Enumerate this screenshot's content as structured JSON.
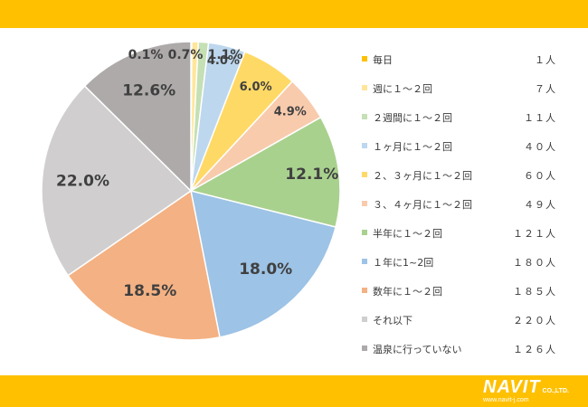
{
  "theme": {
    "band_color": "#FFC000"
  },
  "chart_data": {
    "type": "pie",
    "start_angle_deg": 0,
    "direction": "clockwise",
    "slices": [
      {
        "label": "毎日",
        "count": "１人",
        "percent": 0.1,
        "percent_label": "0.1%",
        "color": "#FFC000"
      },
      {
        "label": "週に１～２回",
        "count": "７人",
        "percent": 0.7,
        "percent_label": "0.7%",
        "color": "#FFE699"
      },
      {
        "label": "２週間に１～２回",
        "count": "１１人",
        "percent": 1.1,
        "percent_label": "1.1%",
        "color": "#C5E0B4"
      },
      {
        "label": "１ヶ月に１～２回",
        "count": "４０人",
        "percent": 4.0,
        "percent_label": "4.0%",
        "color": "#BDD7EE"
      },
      {
        "label": "２、３ヶ月に１～２回",
        "count": "６０人",
        "percent": 6.0,
        "percent_label": "6.0%",
        "color": "#FFD966"
      },
      {
        "label": "３、４ヶ月に１～２回",
        "count": "４９人",
        "percent": 4.9,
        "percent_label": "4.9%",
        "color": "#F8CBAD"
      },
      {
        "label": "半年に１～２回",
        "count": "１２１人",
        "percent": 12.1,
        "percent_label": "12.1%",
        "color": "#A9D18E"
      },
      {
        "label": "１年に1~2回",
        "count": "１８０人",
        "percent": 18.0,
        "percent_label": "18.0%",
        "color": "#9DC3E6"
      },
      {
        "label": "数年に１～２回",
        "count": "１８５人",
        "percent": 18.5,
        "percent_label": "18.5%",
        "color": "#F4B183"
      },
      {
        "label": "それ以下",
        "count": "２２０人",
        "percent": 22.0,
        "percent_label": "22.0%",
        "color": "#D0CECE"
      },
      {
        "label": "温泉に行っていない",
        "count": "１２６人",
        "percent": 12.6,
        "percent_label": "12.6%",
        "color": "#AEAAAA"
      }
    ]
  },
  "logo": {
    "main": "NAVIT",
    "suffix": "CO.,LTD.",
    "url": "www.navit-j.com"
  }
}
